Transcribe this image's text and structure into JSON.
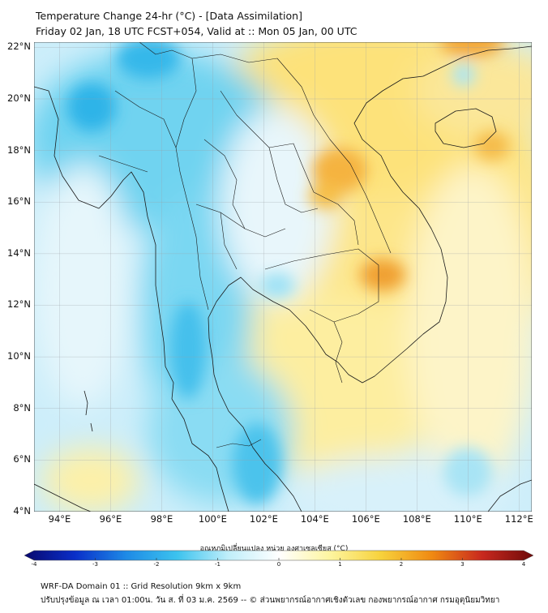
{
  "title_line1": "Temperature Change 24-hr (°C) - [Data Assimilation]",
  "title_line2": "Friday 02 Jan, 18 UTC FCST+054, Valid at :: Mon 05 Jan, 00 UTC",
  "map": {
    "lon_range": [
      93,
      112.5
    ],
    "lat_range": [
      4,
      22.2
    ],
    "lat_labels": [
      "22°N",
      "20°N",
      "18°N",
      "16°N",
      "14°N",
      "12°N",
      "10°N",
      "8°N",
      "6°N",
      "4°N"
    ],
    "lon_labels": [
      "94°E",
      "96°E",
      "98°E",
      "100°E",
      "102°E",
      "104°E",
      "106°E",
      "108°E",
      "110°E",
      "112°E"
    ],
    "hotspots": [
      {
        "lon": 105.1,
        "lat": 16.9,
        "value": 2.3
      },
      {
        "lon": 106.7,
        "lat": 13.2,
        "value": 2.5
      },
      {
        "lon": 110.9,
        "lat": 18.2,
        "value": 1.9
      },
      {
        "lon": 111.0,
        "lat": 22.2,
        "value": 2.4
      }
    ],
    "coldspots": [
      {
        "lon": 95.3,
        "lat": 19.5,
        "value": -1.8
      },
      {
        "lon": 97.6,
        "lat": 21.7,
        "value": -1.7
      },
      {
        "lon": 99.1,
        "lat": 10.0,
        "value": -1.6
      },
      {
        "lon": 101.3,
        "lat": 6.0,
        "value": -1.5
      },
      {
        "lon": 102.3,
        "lat": 12.8,
        "value": -1.0
      }
    ]
  },
  "colorbar": {
    "title": "อุณหภูมิเปลี่ยนแปลง หน่วย องศาเซลเซียส (°C)",
    "min": -4,
    "max": 4,
    "ticks": [
      "-4",
      "-3",
      "-2",
      "-1",
      "0",
      "1",
      "2",
      "3",
      "4"
    ],
    "colors": [
      "#08086e",
      "#0a2fc9",
      "#1e8ae6",
      "#3cc3ee",
      "#bfeefa",
      "#ffffff",
      "#fdf5a0",
      "#f7d23c",
      "#f08a12",
      "#c8281e",
      "#6e0a0a"
    ]
  },
  "footer_line1": "WRF-DA Domain 01 :: Grid Resolution 9km x 9km",
  "footer_line2": "ปรับปรุงข้อมูล ณ เวลา 01:00น. วัน ส. ที่ 03 ม.ค. 2569 -- © ส่วนพยากรณ์อากาศเชิงตัวเลข กองพยากรณ์อากาศ กรมอุตุนิยมวิทยา"
}
